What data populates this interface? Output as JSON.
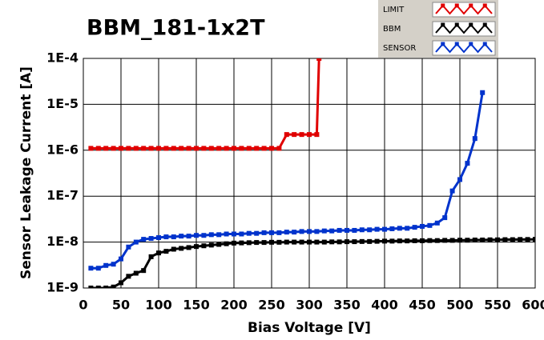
{
  "chart_data": {
    "type": "line",
    "title": "BBM_181-1x2T",
    "x_label": "Bias Voltage [V]",
    "y_label": "Sensor Leakage Current [A]",
    "xlim": [
      0,
      600
    ],
    "xticks": [
      0,
      50,
      100,
      150,
      200,
      250,
      300,
      350,
      400,
      450,
      500,
      550,
      600
    ],
    "ylim": [
      1e-09,
      0.0001
    ],
    "yscale": "log",
    "yticks": [
      {
        "value": 1e-09,
        "label": "1E-9"
      },
      {
        "value": 1e-08,
        "label": "1E-8"
      },
      {
        "value": 1e-07,
        "label": "1E-7"
      },
      {
        "value": 1e-06,
        "label": "1E-6"
      },
      {
        "value": 1e-05,
        "label": "1E-5"
      },
      {
        "value": 0.0001,
        "label": "1E-4"
      }
    ],
    "grid": true,
    "legend": "top-right",
    "series": [
      {
        "name": "LIMIT",
        "color": "#e00000",
        "x": [
          10,
          20,
          30,
          40,
          50,
          60,
          70,
          80,
          90,
          100,
          110,
          120,
          130,
          140,
          150,
          160,
          170,
          180,
          190,
          200,
          210,
          220,
          230,
          240,
          250,
          260,
          270,
          280,
          290,
          300,
          310,
          313
        ],
        "values": [
          1.1e-06,
          1.1e-06,
          1.1e-06,
          1.1e-06,
          1.1e-06,
          1.1e-06,
          1.1e-06,
          1.1e-06,
          1.1e-06,
          1.1e-06,
          1.1e-06,
          1.1e-06,
          1.1e-06,
          1.1e-06,
          1.1e-06,
          1.1e-06,
          1.1e-06,
          1.1e-06,
          1.1e-06,
          1.1e-06,
          1.1e-06,
          1.1e-06,
          1.1e-06,
          1.1e-06,
          1.1e-06,
          1.1e-06,
          2.2e-06,
          2.2e-06,
          2.2e-06,
          2.2e-06,
          2.2e-06,
          0.0001
        ]
      },
      {
        "name": "BBM",
        "color": "#000000",
        "x": [
          10,
          20,
          30,
          40,
          50,
          60,
          70,
          80,
          90,
          100,
          110,
          120,
          130,
          140,
          150,
          160,
          170,
          180,
          190,
          200,
          210,
          220,
          230,
          240,
          250,
          260,
          270,
          280,
          290,
          300,
          310,
          320,
          330,
          340,
          350,
          360,
          370,
          380,
          390,
          400,
          410,
          420,
          430,
          440,
          450,
          460,
          470,
          480,
          490,
          500,
          510,
          520,
          530,
          540,
          550,
          560,
          570,
          580,
          590,
          600
        ],
        "values": [
          1e-09,
          1e-09,
          1e-09,
          1.05e-09,
          1.3e-09,
          1.8e-09,
          2.1e-09,
          2.4e-09,
          4.8e-09,
          5.8e-09,
          6.3e-09,
          7e-09,
          7.3e-09,
          7.6e-09,
          8e-09,
          8.3e-09,
          8.6e-09,
          8.9e-09,
          9.2e-09,
          9.5e-09,
          9.6e-09,
          9.7e-09,
          9.8e-09,
          9.8e-09,
          9.9e-09,
          9.9e-09,
          1e-08,
          1e-08,
          1e-08,
          1e-08,
          1e-08,
          1e-08,
          1.01e-08,
          1.01e-08,
          1.02e-08,
          1.02e-08,
          1.03e-08,
          1.03e-08,
          1.04e-08,
          1.05e-08,
          1.05e-08,
          1.06e-08,
          1.06e-08,
          1.07e-08,
          1.07e-08,
          1.08e-08,
          1.08e-08,
          1.09e-08,
          1.09e-08,
          1.1e-08,
          1.1e-08,
          1.11e-08,
          1.11e-08,
          1.12e-08,
          1.12e-08,
          1.13e-08,
          1.13e-08,
          1.14e-08,
          1.14e-08,
          1.15e-08
        ]
      },
      {
        "name": "SENSOR",
        "color": "#0033cc",
        "x": [
          10,
          20,
          30,
          40,
          50,
          60,
          70,
          80,
          90,
          100,
          110,
          120,
          130,
          140,
          150,
          160,
          170,
          180,
          190,
          200,
          210,
          220,
          230,
          240,
          250,
          260,
          270,
          280,
          290,
          300,
          310,
          320,
          330,
          340,
          350,
          360,
          370,
          380,
          390,
          400,
          410,
          420,
          430,
          440,
          450,
          460,
          470,
          480,
          490,
          500,
          510,
          520,
          530
        ],
        "values": [
          2.7e-09,
          2.7e-09,
          3.1e-09,
          3.3e-09,
          4.3e-09,
          7.8e-09,
          1e-08,
          1.15e-08,
          1.2e-08,
          1.25e-08,
          1.3e-08,
          1.3e-08,
          1.35e-08,
          1.35e-08,
          1.4e-08,
          1.4e-08,
          1.45e-08,
          1.45e-08,
          1.5e-08,
          1.5e-08,
          1.5e-08,
          1.55e-08,
          1.55e-08,
          1.6e-08,
          1.6e-08,
          1.6e-08,
          1.65e-08,
          1.65e-08,
          1.7e-08,
          1.7e-08,
          1.7e-08,
          1.75e-08,
          1.75e-08,
          1.8e-08,
          1.8e-08,
          1.8e-08,
          1.85e-08,
          1.85e-08,
          1.9e-08,
          1.9e-08,
          1.95e-08,
          2e-08,
          2e-08,
          2.1e-08,
          2.2e-08,
          2.3e-08,
          2.6e-08,
          3.4e-08,
          1.3e-07,
          2.3e-07,
          5.2e-07,
          1.8e-06,
          1.8e-05
        ]
      }
    ]
  }
}
